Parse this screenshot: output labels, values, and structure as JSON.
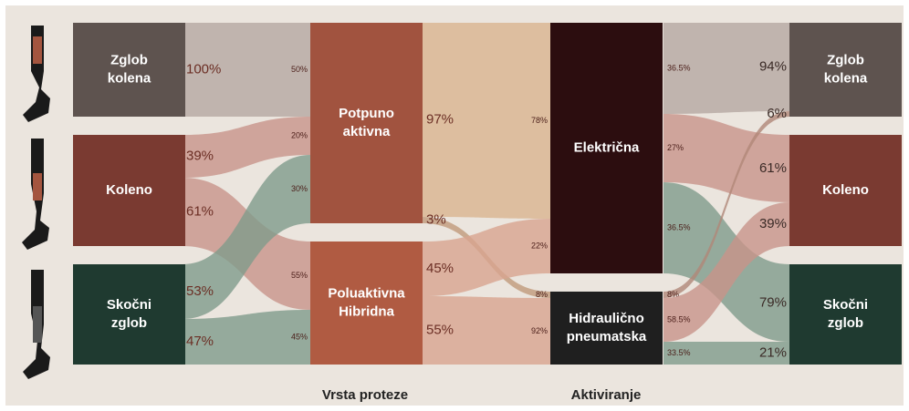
{
  "left_nodes": [
    {
      "label": [
        "Zglob",
        "kolena"
      ]
    },
    {
      "label": [
        "Koleno"
      ]
    },
    {
      "label": [
        "Skočni",
        "zglob"
      ]
    }
  ],
  "type_nodes": [
    {
      "label": [
        "Potpuno",
        "aktivna"
      ]
    },
    {
      "label": [
        "Poluaktivna",
        "Hibridna"
      ]
    }
  ],
  "actuation_nodes": [
    {
      "label": [
        "Električna"
      ]
    },
    {
      "label": [
        "Hidraulično",
        "pneumatska"
      ]
    }
  ],
  "right_nodes": [
    {
      "label": [
        "Zglob",
        "kolena"
      ]
    },
    {
      "label": [
        "Koleno"
      ]
    },
    {
      "label": [
        "Skočni",
        "zglob"
      ]
    }
  ],
  "column_labels": [
    "Vrsta proteze",
    "Aktiviranje"
  ],
  "flows": [
    {
      "source_share": "100%",
      "target_share": "50%"
    },
    {
      "source_share": "39%",
      "target_share": "20%"
    },
    {
      "source_share": "61%",
      "target_share": "55%"
    },
    {
      "source_share": "53%",
      "target_share": "30%"
    },
    {
      "source_share": "47%",
      "target_share": "45%"
    },
    {
      "source_share": "97%",
      "target_share": "78%"
    },
    {
      "source_share": "3%",
      "target_share": "8%"
    },
    {
      "source_share": "45%",
      "target_share": "22%"
    },
    {
      "source_share": "55%",
      "target_share": "92%"
    },
    {
      "source_share": "36.5%",
      "target_share": "94%"
    },
    {
      "source_share": "27%",
      "target_share": "61%"
    },
    {
      "source_share": "36.5%",
      "target_share": "79%"
    },
    {
      "source_share": "8%",
      "target_share": "6%"
    },
    {
      "source_share": "58.5%",
      "target_share": "39%"
    },
    {
      "source_share": "33.5%",
      "target_share": "21%"
    }
  ]
}
